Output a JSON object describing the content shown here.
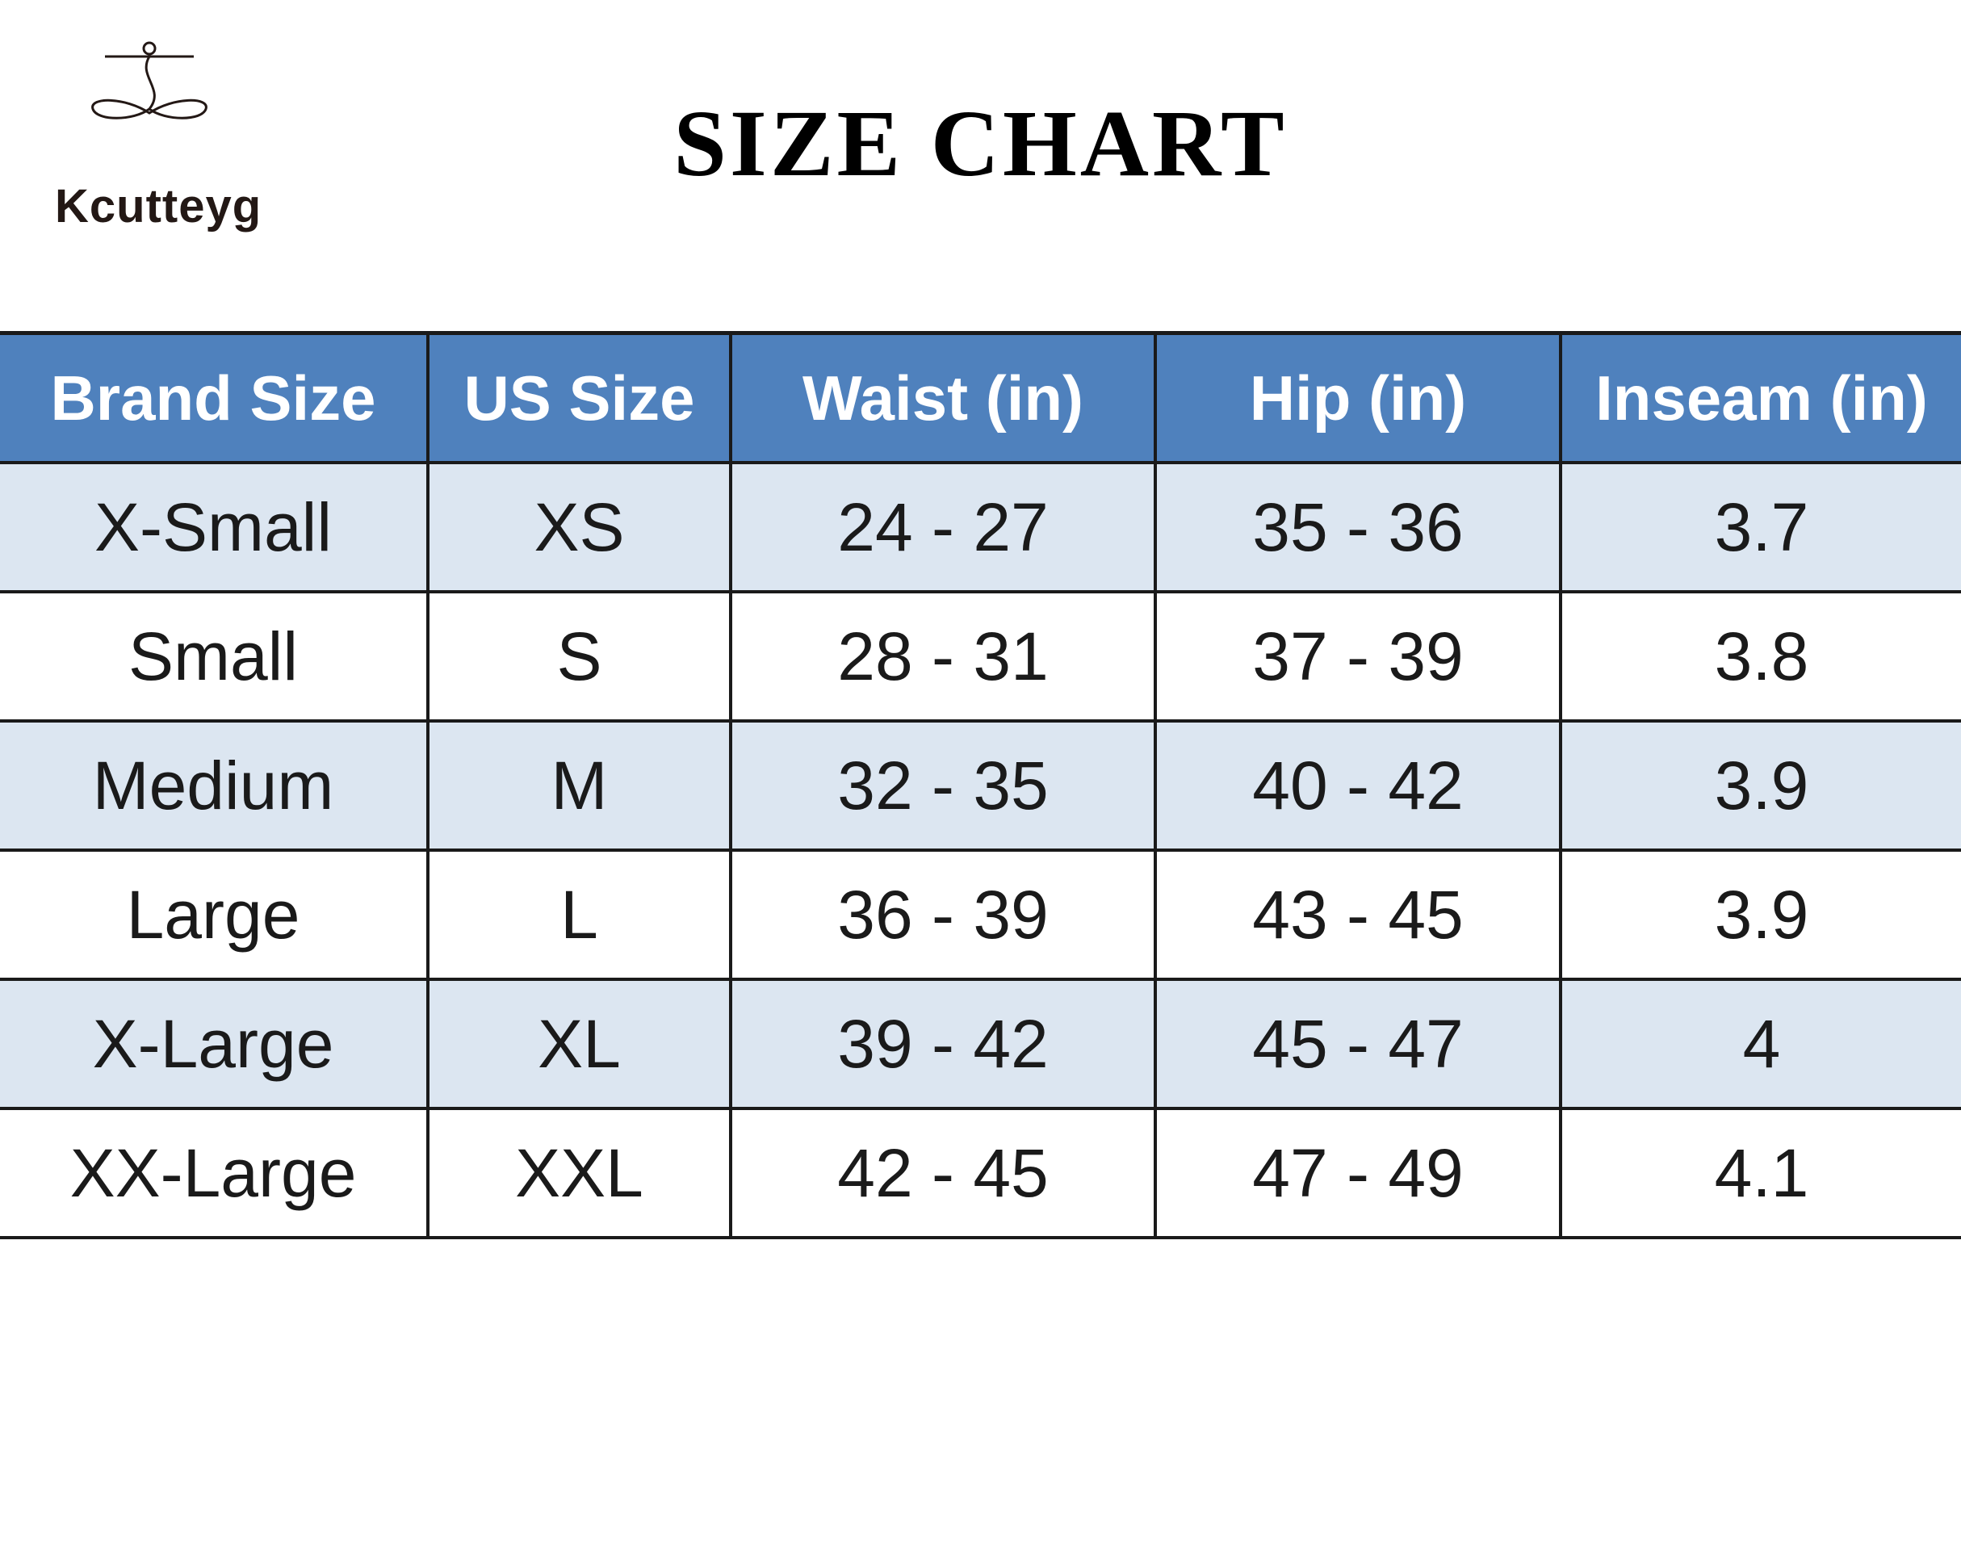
{
  "header": {
    "brand": "Kcutteyg",
    "title": "SIZE CHART"
  },
  "table": {
    "columns": [
      "Brand Size",
      "US Size",
      "Waist (in)",
      "Hip (in)",
      "Inseam (in)"
    ],
    "rows": [
      [
        "X-Small",
        "XS",
        "24 - 27",
        "35 - 36",
        "3.7"
      ],
      [
        "Small",
        "S",
        "28 - 31",
        "37 - 39",
        "3.8"
      ],
      [
        "Medium",
        "M",
        "32 - 35",
        "40 - 42",
        "3.9"
      ],
      [
        "Large",
        "L",
        "36 - 39",
        "43 - 45",
        "3.9"
      ],
      [
        "X-Large",
        "XL",
        "39 - 42",
        "45 - 47",
        "4"
      ],
      [
        "XX-Large",
        "XXL",
        "42 - 45",
        "47 - 49",
        "4.1"
      ]
    ]
  }
}
